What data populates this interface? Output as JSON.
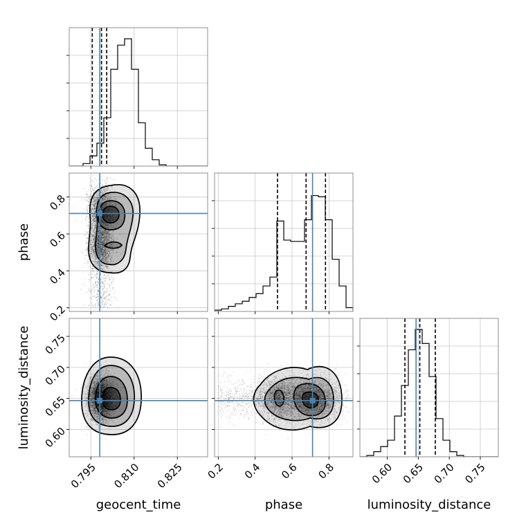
{
  "chart_data": {
    "type": "corner",
    "parameters": [
      "geocent_time",
      "phase",
      "luminosity_distance"
    ],
    "labels": {
      "geocent_time": "geocent_time",
      "phase": "phase",
      "luminosity_distance": "luminosity_distance"
    },
    "ranges": {
      "geocent_time": [
        0.7875,
        0.8355
      ],
      "phase": [
        0.18,
        0.93
      ],
      "luminosity_distance": [
        0.556,
        0.779
      ]
    },
    "ticks": {
      "geocent_time": [
        "0.795",
        "0.810",
        "0.825"
      ],
      "phase": [
        "0.2",
        "0.4",
        "0.6",
        "0.8"
      ],
      "luminosity_distance": [
        "0.60",
        "0.65",
        "0.70",
        "0.75"
      ]
    },
    "truths": {
      "geocent_time": 0.7981,
      "phase": 0.711,
      "luminosity_distance": 0.6465
    },
    "quantiles": {
      "geocent_time": [
        0.7955,
        0.7987,
        0.8005
      ],
      "phase": [
        0.521,
        0.676,
        0.781
      ],
      "luminosity_distance": [
        0.6285,
        0.6525,
        0.6775
      ]
    },
    "histograms": {
      "geocent_time": [
        0,
        0,
        0.02,
        0.08,
        0.18,
        0.38,
        0.76,
        0.95,
        1.0,
        0.76,
        0.34,
        0.14,
        0.05,
        0.01,
        0,
        0,
        0,
        0,
        0,
        0
      ],
      "phase": [
        0.01,
        0.02,
        0.04,
        0.06,
        0.08,
        0.11,
        0.14,
        0.2,
        0.27,
        0.71,
        0.56,
        0.55,
        0.55,
        0.72,
        0.91,
        0.9,
        0.72,
        0.41,
        0.2,
        0.03
      ],
      "luminosity_distance": [
        0,
        0.01,
        0.04,
        0.08,
        0.13,
        0.32,
        0.56,
        0.84,
        1.0,
        0.89,
        0.63,
        0.3,
        0.13,
        0.04,
        0.01,
        0,
        0,
        0,
        0,
        0
      ]
    },
    "grid": true,
    "samples": 4000
  }
}
